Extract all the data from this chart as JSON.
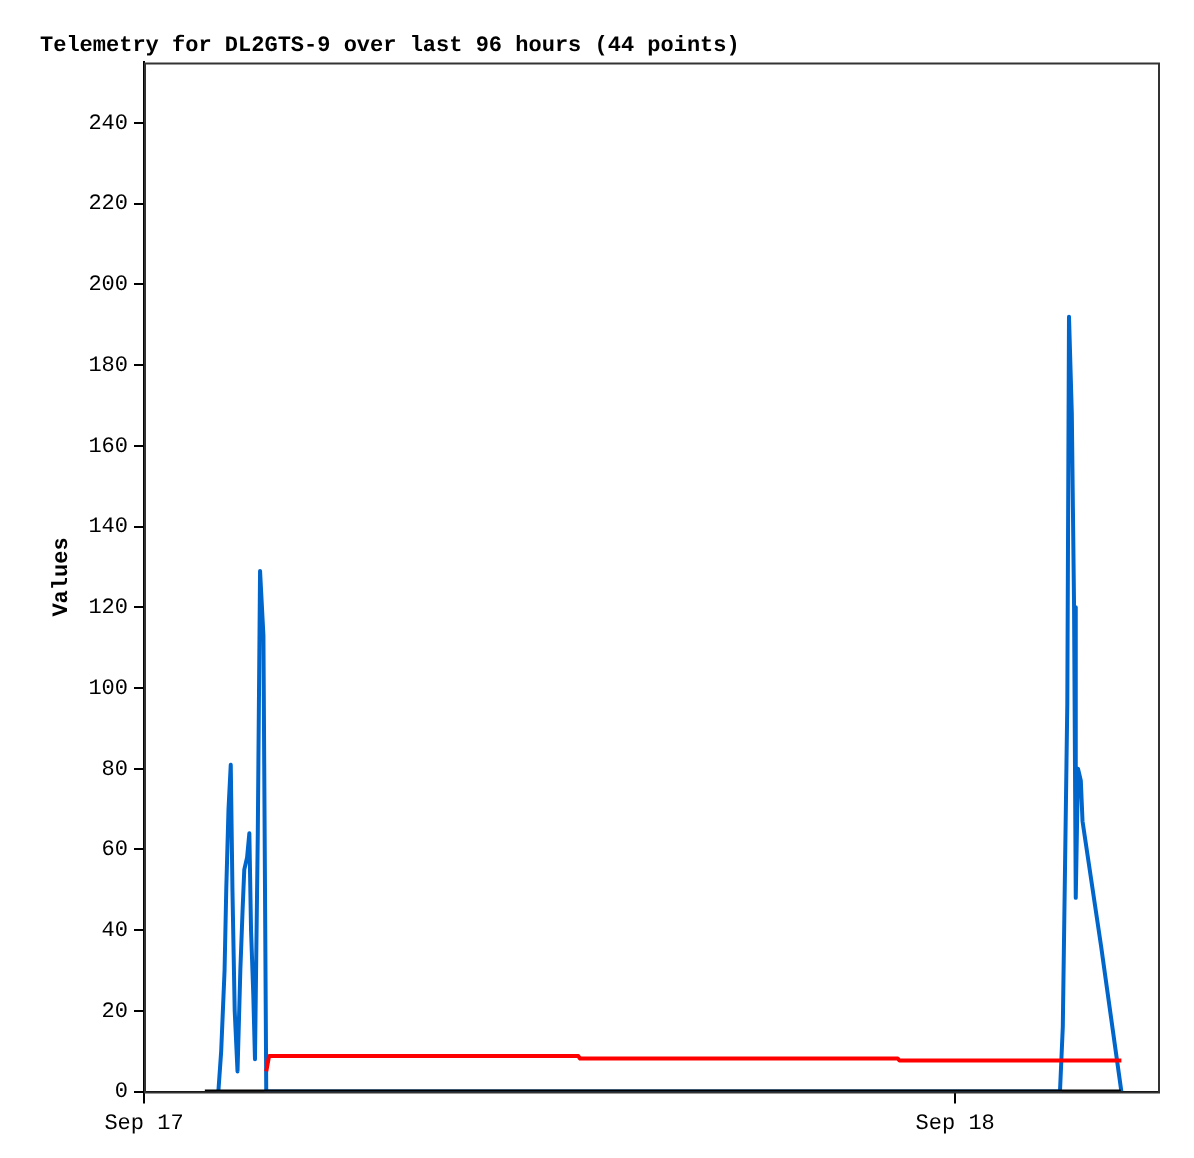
{
  "chart_data": {
    "type": "line",
    "title": "Telemetry for DL2GTS-9 over last 96 hours (44 points)",
    "ylabel": "Values",
    "xlim": [
      "--09-17T00:00",
      "--09-18T06:00"
    ],
    "xticks": [
      {
        "value": "--09-17",
        "label": "Sep 17"
      },
      {
        "value": "--09-18",
        "label": "Sep 18"
      }
    ],
    "ylim": [
      0,
      255
    ],
    "yticks": [
      0,
      20,
      40,
      60,
      80,
      100,
      120,
      140,
      160,
      180,
      200,
      220,
      240
    ],
    "grid": false,
    "legend": false,
    "marker": "none",
    "line_style": "solid",
    "series": [
      {
        "color": "#000000",
        "x": [
          "--09-17T01:48",
          "--09-18T04:54"
        ],
        "values": [
          0,
          0
        ]
      },
      {
        "color": "#ff0000",
        "x": [
          "--09-17T03:37",
          "--09-17T03:42",
          "--09-17T12:51",
          "--09-17T12:54",
          "--09-17T22:18",
          "--09-17T22:21",
          "--09-18T04:55"
        ],
        "values": [
          5,
          8.8,
          8.8,
          8.2,
          8.2,
          7.7,
          7.7
        ]
      },
      {
        "color": "#0066cc",
        "x": [
          "--09-17T02:12",
          "--09-17T02:17",
          "--09-17T02:23",
          "--09-17T02:26",
          "--09-17T02:30",
          "--09-17T02:34",
          "--09-17T02:37",
          "--09-17T02:41",
          "--09-17T02:46",
          "--09-17T02:51",
          "--09-17T02:55",
          "--09-17T02:58",
          "--09-17T03:03",
          "--09-17T03:07",
          "--09-17T03:10",
          "--09-17T03:14",
          "--09-17T03:17",
          "--09-17T03:22",
          "--09-17T03:26",
          "--09-17T03:32",
          "--09-17T03:37",
          "--09-18T03:06",
          "--09-18T03:11",
          "--09-18T03:19",
          "--09-18T03:22",
          "--09-18T03:27",
          "--09-18T03:31",
          "--09-18T03:34",
          "--09-18T03:38",
          "--09-18T03:43",
          "--09-18T03:46",
          "--09-18T04:19",
          "--09-18T04:55"
        ],
        "values": [
          0,
          10,
          30,
          50,
          70,
          81,
          50,
          20,
          5,
          30,
          45,
          55,
          58,
          64,
          40,
          24,
          8,
          64,
          129,
          113,
          0,
          0,
          16,
          96,
          192,
          168,
          120,
          48,
          80,
          77,
          67,
          36,
          0
        ]
      }
    ]
  }
}
